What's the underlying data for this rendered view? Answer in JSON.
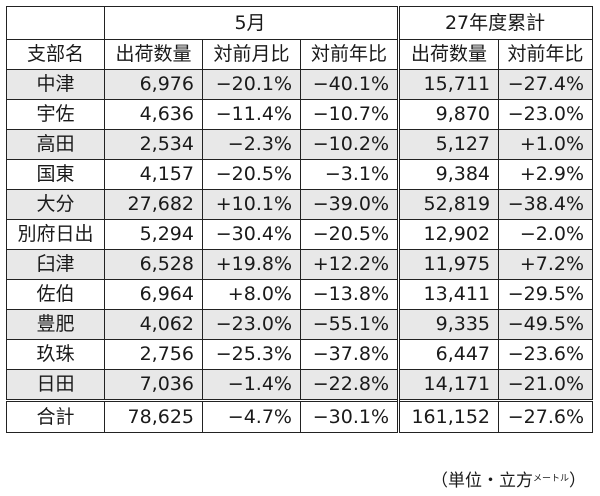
{
  "table": {
    "group_headers": {
      "month": "5月",
      "cumulative": "27年度累計"
    },
    "column_headers": [
      "支部名",
      "出荷数量",
      "対前月比",
      "対前年比",
      "出荷数量",
      "対前年比"
    ],
    "rows": [
      {
        "branch": "中津",
        "m_qty": "6,976",
        "m_prev_month": "−20.1%",
        "m_prev_year": "−40.1%",
        "c_qty": "15,711",
        "c_prev_year": "−27.4%"
      },
      {
        "branch": "宇佐",
        "m_qty": "4,636",
        "m_prev_month": "−11.4%",
        "m_prev_year": "−10.7%",
        "c_qty": "9,870",
        "c_prev_year": "−23.0%"
      },
      {
        "branch": "高田",
        "m_qty": "2,534",
        "m_prev_month": "−2.3%",
        "m_prev_year": "−10.2%",
        "c_qty": "5,127",
        "c_prev_year": "+1.0%"
      },
      {
        "branch": "国東",
        "m_qty": "4,157",
        "m_prev_month": "−20.5%",
        "m_prev_year": "−3.1%",
        "c_qty": "9,384",
        "c_prev_year": "+2.9%"
      },
      {
        "branch": "大分",
        "m_qty": "27,682",
        "m_prev_month": "+10.1%",
        "m_prev_year": "−39.0%",
        "c_qty": "52,819",
        "c_prev_year": "−38.4%"
      },
      {
        "branch": "別府日出",
        "m_qty": "5,294",
        "m_prev_month": "−30.4%",
        "m_prev_year": "−20.5%",
        "c_qty": "12,902",
        "c_prev_year": "−2.0%"
      },
      {
        "branch": "臼津",
        "m_qty": "6,528",
        "m_prev_month": "+19.8%",
        "m_prev_year": "+12.2%",
        "c_qty": "11,975",
        "c_prev_year": "+7.2%"
      },
      {
        "branch": "佐伯",
        "m_qty": "6,964",
        "m_prev_month": "+8.0%",
        "m_prev_year": "−13.8%",
        "c_qty": "13,411",
        "c_prev_year": "−29.5%"
      },
      {
        "branch": "豊肥",
        "m_qty": "4,062",
        "m_prev_month": "−23.0%",
        "m_prev_year": "−55.1%",
        "c_qty": "9,335",
        "c_prev_year": "−49.5%"
      },
      {
        "branch": "玖珠",
        "m_qty": "2,756",
        "m_prev_month": "−25.3%",
        "m_prev_year": "−37.8%",
        "c_qty": "6,447",
        "c_prev_year": "−23.6%"
      },
      {
        "branch": "日田",
        "m_qty": "7,036",
        "m_prev_month": "−1.4%",
        "m_prev_year": "−22.8%",
        "c_qty": "14,171",
        "c_prev_year": "−21.0%"
      }
    ],
    "total": {
      "branch": "合計",
      "m_qty": "78,625",
      "m_prev_month": "−4.7%",
      "m_prev_year": "−30.1%",
      "c_qty": "161,152",
      "c_prev_year": "−27.6%"
    },
    "shade_color": "#e8e8e8"
  },
  "note": {
    "main": "（単位・立方",
    "small": "メートル",
    "close": "）"
  }
}
